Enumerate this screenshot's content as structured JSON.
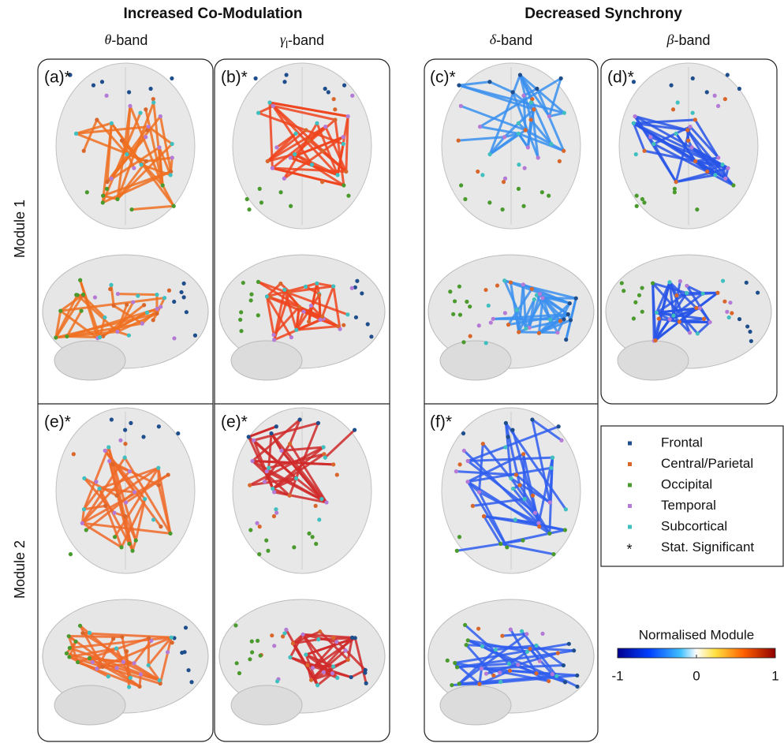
{
  "groups": [
    "Increased Co-Modulation",
    "Decreased Synchrony"
  ],
  "bands": [
    {
      "symbol": "θ",
      "text": "-band"
    },
    {
      "symbol": "γ",
      "sub": "l",
      "text": "-band"
    },
    {
      "symbol": "δ",
      "text": "-band"
    },
    {
      "symbol": "β",
      "text": "-band"
    }
  ],
  "modules": [
    "Module 1",
    "Module 2"
  ],
  "panels": [
    "(a)*",
    "(b)*",
    "(c)*",
    "(d)*",
    "(e)*",
    "(e)*",
    "(f)*"
  ],
  "legend": [
    {
      "label": "Frontal",
      "color": "#1f4e8c"
    },
    {
      "label": "Central/Parietal",
      "color": "#d9662a"
    },
    {
      "label": "Occipital",
      "color": "#4a9a2e"
    },
    {
      "label": "Temporal",
      "color": "#b57ad6"
    },
    {
      "label": "Subcortical",
      "color": "#3fbfbf"
    },
    {
      "label": "Stat. Significant",
      "marker": "*"
    }
  ],
  "colorbar": {
    "title": "Normalised Module",
    "lim": [
      -1,
      1
    ],
    "ticks": [
      -1,
      0,
      1
    ]
  }
}
